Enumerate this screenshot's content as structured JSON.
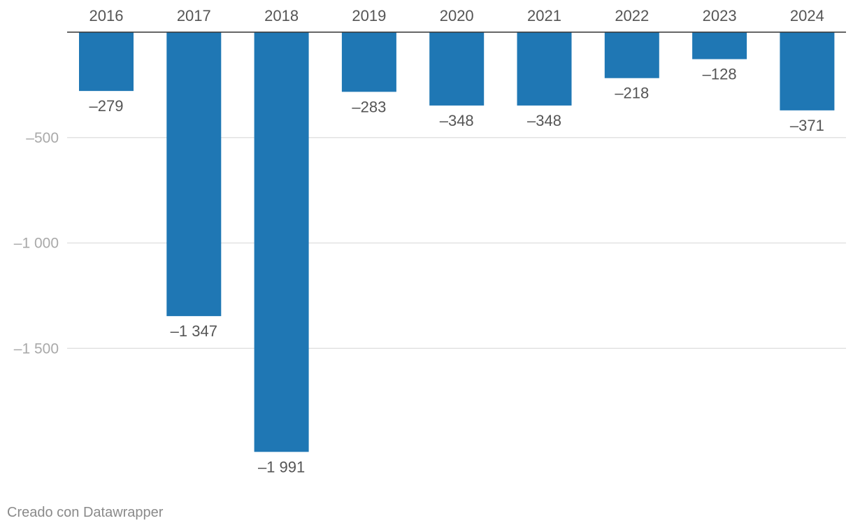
{
  "chart_data": {
    "type": "bar",
    "orientation": "vertical",
    "x_axis_position": "top",
    "categories": [
      "2016",
      "2017",
      "2018",
      "2019",
      "2020",
      "2021",
      "2022",
      "2023",
      "2024"
    ],
    "values": [
      -279,
      -1347,
      -1991,
      -283,
      -348,
      -348,
      -218,
      -128,
      -371
    ],
    "value_labels": [
      "–279",
      "–1 347",
      "–1 991",
      "–283",
      "–348",
      "–348",
      "–218",
      "–128",
      "–371"
    ],
    "yticks": [
      -500,
      -1000,
      -1500
    ],
    "ytick_labels": [
      "–500",
      "–1 000",
      "–1 500"
    ],
    "ylim": [
      -2000,
      0
    ],
    "grid": true,
    "bar_color": "#1f77b4",
    "title": "",
    "xlabel": "",
    "ylabel": ""
  },
  "footer": {
    "credit": "Creado con Datawrapper"
  }
}
